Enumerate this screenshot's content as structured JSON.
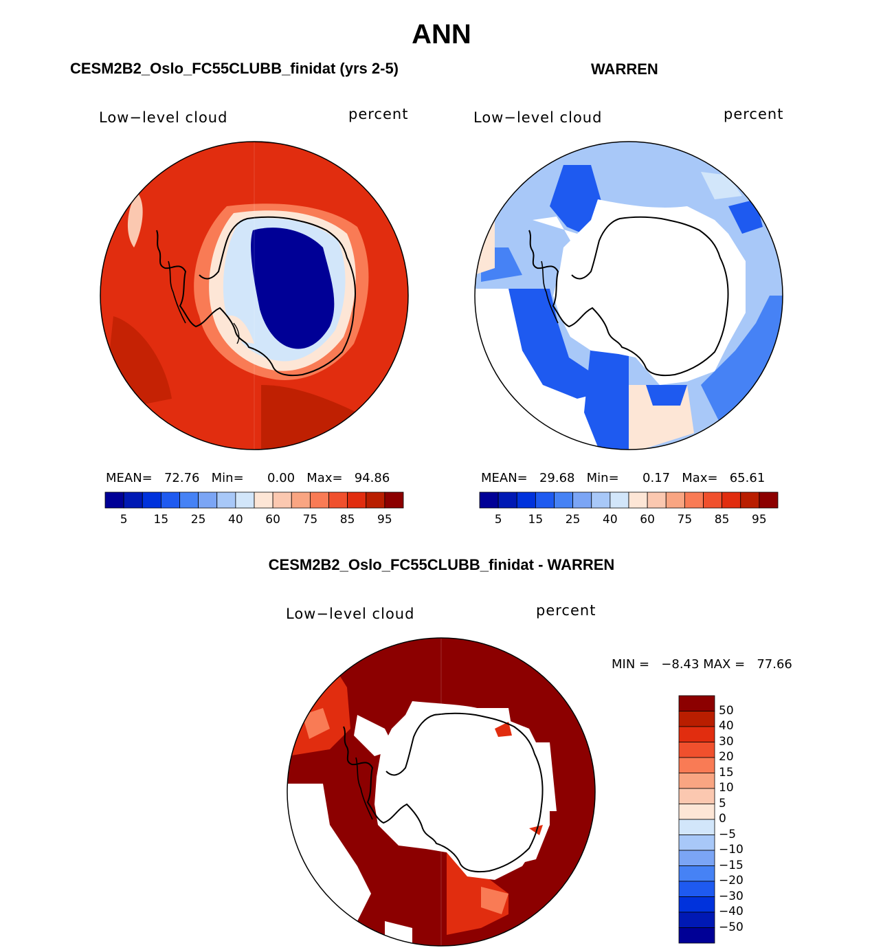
{
  "title": "ANN",
  "panels": [
    {
      "heading": "CESM2B2_Oslo_FC55CLUBB_finidat (yrs 2-5)",
      "variable": "Low−level cloud",
      "units": "percent",
      "stats": {
        "mean_label": "MEAN=",
        "mean": "72.76",
        "min_label": "Min=",
        "min": "0.00",
        "max_label": "Max=",
        "max": "94.86"
      }
    },
    {
      "heading": "WARREN",
      "variable": "Low−level cloud",
      "units": "percent",
      "stats": {
        "mean_label": "MEAN=",
        "mean": "29.68",
        "min_label": "Min=",
        "min": "0.17",
        "max_label": "Max=",
        "max": "65.61"
      }
    }
  ],
  "diff_panel": {
    "heading": "CESM2B2_Oslo_FC55CLUBB_finidat - WARREN",
    "variable": "Low−level cloud",
    "units": "percent",
    "stats": {
      "min_label": "MIN =",
      "min": "−8.43",
      "max_label": "MAX =",
      "max": "77.66"
    }
  },
  "chart_data": [
    {
      "type": "heatmap",
      "projection": "south-polar-stereographic",
      "title": "CESM2B2_Oslo_FC55CLUBB_finidat (yrs 2-5)",
      "variable": "Low-level cloud",
      "units": "percent",
      "mean": 72.76,
      "min": 0.0,
      "max": 94.86,
      "colorbar_ticks": [
        "5",
        "15",
        "25",
        "40",
        "60",
        "75",
        "85",
        "95"
      ],
      "colorbar_colors": [
        "#000096",
        "#0019b4",
        "#0032dc",
        "#1e5af0",
        "#4682f5",
        "#7ba5f5",
        "#a8c8f8",
        "#d2e6fa",
        "#fde6d6",
        "#fbc8b0",
        "#f9a582",
        "#f97b55",
        "#f0502d",
        "#e12d0f",
        "#b91e00",
        "#8c0000"
      ]
    },
    {
      "type": "heatmap",
      "projection": "south-polar-stereographic",
      "title": "WARREN",
      "variable": "Low-level cloud",
      "units": "percent",
      "mean": 29.68,
      "min": 0.17,
      "max": 65.61,
      "colorbar_ticks": [
        "5",
        "15",
        "25",
        "40",
        "60",
        "75",
        "85",
        "95"
      ],
      "colorbar_colors": [
        "#000096",
        "#0019b4",
        "#0032dc",
        "#1e5af0",
        "#4682f5",
        "#7ba5f5",
        "#a8c8f8",
        "#d2e6fa",
        "#fde6d6",
        "#fbc8b0",
        "#f9a582",
        "#f97b55",
        "#f0502d",
        "#e12d0f",
        "#b91e00",
        "#8c0000"
      ]
    },
    {
      "type": "heatmap",
      "projection": "south-polar-stereographic",
      "title": "CESM2B2_Oslo_FC55CLUBB_finidat - WARREN",
      "variable": "Low-level cloud",
      "units": "percent",
      "min": -8.43,
      "max": 77.66,
      "colorbar_ticks": [
        "50",
        "40",
        "30",
        "20",
        "15",
        "10",
        "5",
        "0",
        "−5",
        "−10",
        "−15",
        "−20",
        "−30",
        "−40",
        "−50"
      ],
      "colorbar_colors": [
        "#8c0000",
        "#b91e00",
        "#e12d0f",
        "#f0502d",
        "#f97b55",
        "#f9a582",
        "#fbc8b0",
        "#fde6d6",
        "#d2e6fa",
        "#a8c8f8",
        "#7ba5f5",
        "#4682f5",
        "#1e5af0",
        "#0032dc",
        "#0019b4",
        "#000096"
      ]
    }
  ]
}
